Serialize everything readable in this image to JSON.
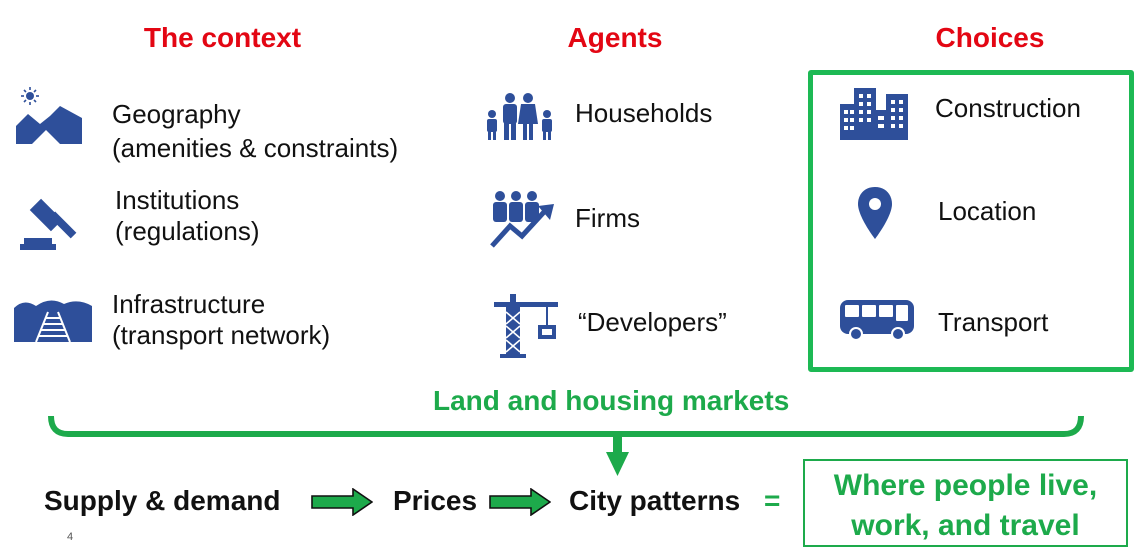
{
  "headers": {
    "context": "The context",
    "agents": "Agents",
    "choices": "Choices"
  },
  "context": {
    "geography": [
      "Geography",
      "(amenities & constraints)"
    ],
    "institutions": [
      "Institutions",
      "(regulations)"
    ],
    "infrastructure": [
      "Infrastructure",
      "(transport network)"
    ]
  },
  "agents": {
    "households": "Households",
    "firms": "Firms",
    "developers": "“Developers”"
  },
  "choices": {
    "construction": "Construction",
    "location": "Location",
    "transport": "Transport"
  },
  "markets_label": "Land and housing markets",
  "flow": {
    "supply_demand": "Supply & demand",
    "prices": "Prices",
    "city_patterns": "City patterns",
    "equals": "=",
    "result": [
      "Where people live,",
      "work, and travel"
    ]
  },
  "page_number": "4",
  "colors": {
    "header_red": "#e30613",
    "icon_blue": "#2e4f9a",
    "green": "#1daa4b"
  },
  "icons": {
    "geography": "mountain-sun-icon",
    "institutions": "gavel-icon",
    "infrastructure": "railway-icon",
    "households": "family-icon",
    "firms": "business-growth-icon",
    "developers": "crane-icon",
    "construction": "buildings-icon",
    "location": "location-pin-icon",
    "transport": "bus-icon"
  }
}
